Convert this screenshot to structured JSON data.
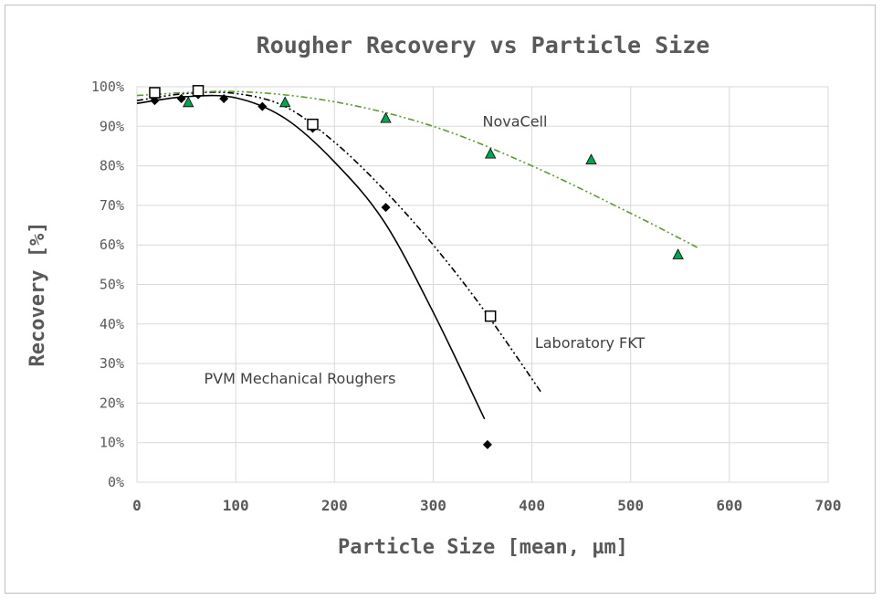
{
  "chart_data": {
    "type": "scatter",
    "title": "Rougher Recovery vs Particle Size",
    "xlabel": "Particle Size [mean, µm]",
    "ylabel": "Recovery [%]",
    "xlim": [
      0,
      700
    ],
    "ylim": [
      0,
      100
    ],
    "x_ticks": [
      "0",
      "100",
      "200",
      "300",
      "400",
      "500",
      "600",
      "700"
    ],
    "y_ticks": [
      "0%",
      "10%",
      "20%",
      "30%",
      "40%",
      "50%",
      "60%",
      "70%",
      "80%",
      "90%",
      "100%"
    ],
    "grid": true,
    "legend": "none",
    "series": [
      {
        "name": "PVM Mechanical Roughers",
        "marker": "diamond",
        "color": "#000000",
        "points": [
          [
            18,
            96.5
          ],
          [
            45,
            97
          ],
          [
            62,
            98
          ],
          [
            88,
            97
          ],
          [
            127,
            95
          ],
          [
            178,
            89.5
          ],
          [
            252,
            69.5
          ],
          [
            355,
            9.5
          ]
        ],
        "trendline": {
          "style": "solid",
          "color": "#000000",
          "points": [
            [
              0,
              95.8
            ],
            [
              50,
              97.5
            ],
            [
              100,
              97.2
            ],
            [
              150,
              92
            ],
            [
              200,
              81
            ],
            [
              250,
              66
            ],
            [
              300,
              43
            ],
            [
              352,
              16
            ]
          ]
        }
      },
      {
        "name": "Laboratory FKT",
        "marker": "open-square",
        "color": "#000000",
        "points": [
          [
            18,
            98.5
          ],
          [
            62,
            99
          ],
          [
            178,
            90.5
          ],
          [
            358,
            42
          ]
        ],
        "trendline": {
          "style": "dash-dot-dot",
          "color": "#000000",
          "points": [
            [
              0,
              96.5
            ],
            [
              50,
              98.3
            ],
            [
              100,
              98.3
            ],
            [
              150,
              95
            ],
            [
              200,
              86
            ],
            [
              250,
              74
            ],
            [
              300,
              60
            ],
            [
              350,
              44
            ],
            [
              410,
              22.5
            ]
          ]
        }
      },
      {
        "name": "NovaCell",
        "marker": "triangle",
        "color": "#00a550",
        "points": [
          [
            52,
            96
          ],
          [
            150,
            96
          ],
          [
            252,
            92
          ],
          [
            358,
            83
          ],
          [
            460,
            81.5
          ],
          [
            548,
            57.5
          ]
        ],
        "trendline": {
          "style": "dash-dot-dot",
          "color": "#5a9a30",
          "points": [
            [
              0,
              97.8
            ],
            [
              100,
              98.8
            ],
            [
              200,
              96.2
            ],
            [
              300,
              90
            ],
            [
              400,
              80
            ],
            [
              500,
              68
            ],
            [
              568,
              59.3
            ]
          ]
        }
      }
    ],
    "annotations": [
      {
        "text": "NovaCell",
        "x": 350,
        "y": 90
      },
      {
        "text": "Laboratory FKT",
        "x": 403,
        "y": 34
      },
      {
        "text": "PVM Mechanical Roughers",
        "x": 68,
        "y": 25
      }
    ]
  }
}
